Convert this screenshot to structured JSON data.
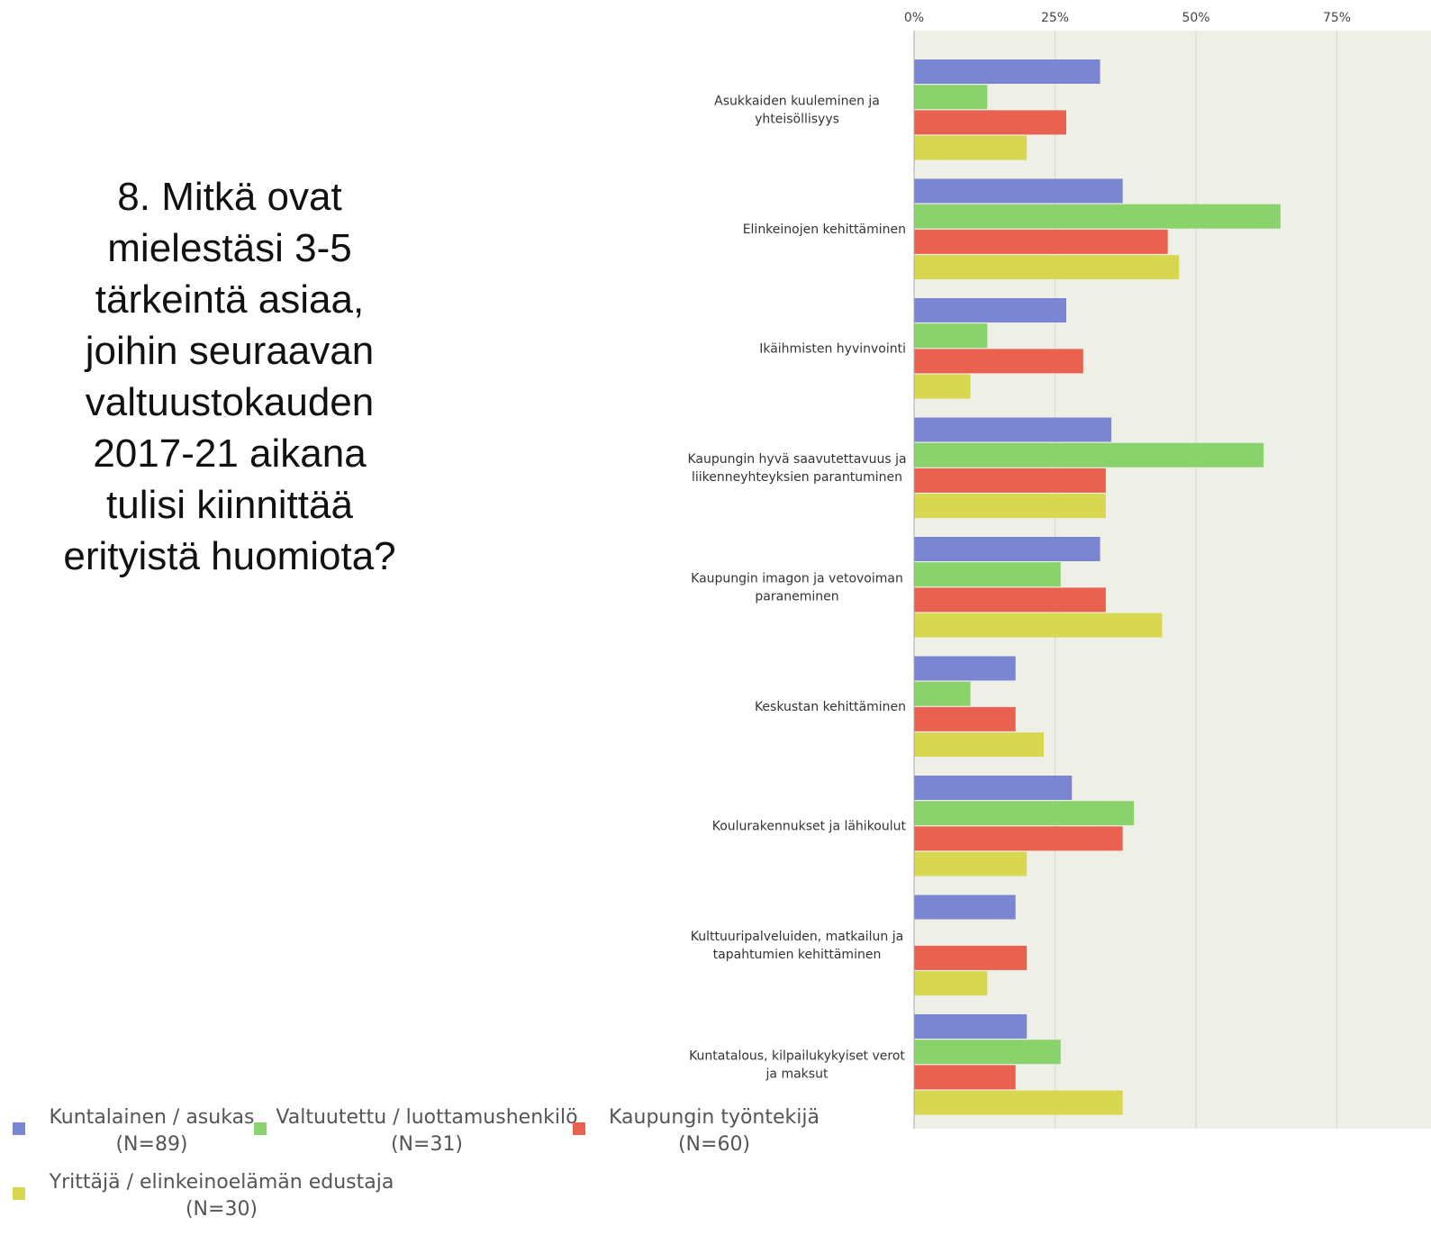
{
  "question": "8. Mitkä ovat mielestäsi 3-5 tärkeintä asiaa, joihin seuraavan valtuustokauden 2017-21 aikana tulisi kiinnittää erityistä huomiota?",
  "colors": {
    "blue": "#7b86d3",
    "green": "#8ad26b",
    "red": "#e8624f",
    "yellow": "#d7d84f",
    "plot_bg": "#eef0e8",
    "grid": "#d6d8d0"
  },
  "legend": [
    {
      "line1": "Kuntalainen / asukas",
      "line2": "(N=89)",
      "color": "#7b86d3"
    },
    {
      "line1": "Valtuutettu / luottamushenkilö",
      "line2": "(N=31)",
      "color": "#8ad26b"
    },
    {
      "line1": "Kaupungin työntekijä",
      "line2": "(N=60)",
      "color": "#e8624f"
    },
    {
      "line1": "Yrittäjä / elinkeinoelämän edustaja",
      "line2": "(N=30)",
      "color": "#d7d84f"
    }
  ],
  "chart_data": {
    "type": "bar",
    "orientation": "horizontal",
    "title": "",
    "xlabel": "",
    "ylabel": "",
    "xlim": [
      0,
      80
    ],
    "tick_values": [
      0,
      25,
      50,
      75
    ],
    "tick_labels": [
      "0%",
      "25%",
      "50%",
      "75%"
    ],
    "grid": true,
    "legend_position": "bottom",
    "categories": [
      [
        "Asukkaiden kuuleminen ja",
        "yhteisöllisyys"
      ],
      [
        "Elinkeinojen kehittäminen"
      ],
      [
        "Ikäihmisten hyvinvointi"
      ],
      [
        "Kaupungin hyvä saavutettavuus ja",
        "liikenneyhteyksien parantuminen"
      ],
      [
        "Kaupungin imagon ja vetovoiman",
        "paraneminen"
      ],
      [
        "Keskustan kehittäminen"
      ],
      [
        "Koulurakennukset ja lähikoulut"
      ],
      [
        "Kulttuuripalveluiden, matkailun ja",
        "tapahtumien kehittäminen"
      ],
      [
        "Kuntatalous, kilpailukykyiset verot",
        "ja maksut"
      ]
    ],
    "series": [
      {
        "name": "Kuntalainen / asukas (N=89)",
        "color": "#7b86d3",
        "values": [
          33,
          37,
          27,
          35,
          33,
          18,
          28,
          18,
          20
        ]
      },
      {
        "name": "Valtuutettu / luottamushenkilö (N=31)",
        "color": "#8ad26b",
        "values": [
          13,
          65,
          13,
          62,
          26,
          10,
          39,
          0,
          26
        ]
      },
      {
        "name": "Kaupungin työntekijä (N=60)",
        "color": "#e8624f",
        "values": [
          27,
          45,
          30,
          34,
          34,
          18,
          37,
          20,
          18
        ]
      },
      {
        "name": "Yrittäjä / elinkeinoelämän edustaja (N=30)",
        "color": "#d7d84f",
        "values": [
          20,
          47,
          10,
          34,
          44,
          23,
          20,
          13,
          37
        ]
      }
    ]
  }
}
